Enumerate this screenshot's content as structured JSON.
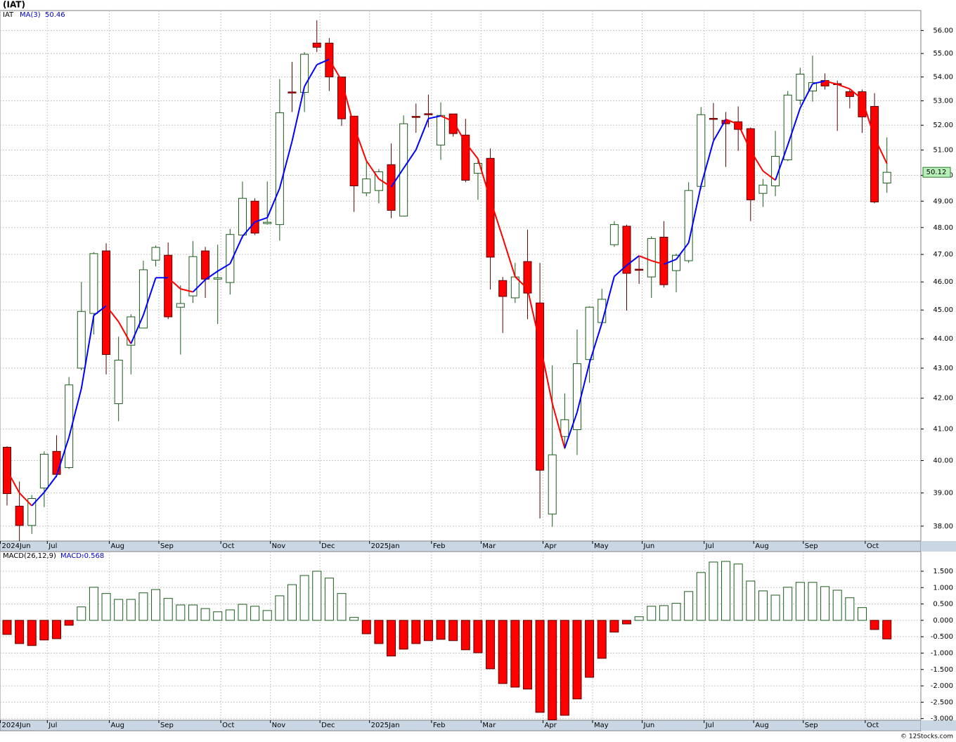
{
  "chart_data": [
    {
      "type": "candlestick",
      "title": "(IAT)",
      "symbol": "IAT",
      "categories": [
        "2024Jun",
        null,
        null,
        null,
        "Jul",
        null,
        null,
        null,
        null,
        "Aug",
        null,
        null,
        null,
        "Sep",
        null,
        null,
        null,
        null,
        "Oct",
        null,
        null,
        null,
        "Nov",
        null,
        null,
        null,
        "Dec",
        null,
        null,
        null,
        "2025Jan",
        null,
        null,
        null,
        null,
        "Feb",
        null,
        null,
        null,
        "Mar",
        null,
        null,
        null,
        null,
        "Apr",
        null,
        null,
        null,
        "May",
        null,
        null,
        null,
        "Jun",
        null,
        null,
        null,
        null,
        "Jul",
        null,
        null,
        null,
        "Aug",
        null,
        null,
        null,
        "Sep",
        null,
        null,
        null,
        null,
        "Oct",
        null
      ],
      "open": [
        40.42,
        38.6,
        38.02,
        39.15,
        40.29,
        39.78,
        43.0,
        44.88,
        47.13,
        41.82,
        43.78,
        44.37,
        46.79,
        46.97,
        45.1,
        45.5,
        47.13,
        46.1,
        45.98,
        47.72,
        49.0,
        48.15,
        48.11,
        53.37,
        53.35,
        55.45,
        55.45,
        54.0,
        52.37,
        49.32,
        49.41,
        50.42,
        48.43,
        52.36,
        52.47,
        51.2,
        52.46,
        51.6,
        50.08,
        50.67,
        46.05,
        45.43,
        46.74,
        45.25,
        38.36,
        40.76,
        40.98,
        43.29,
        44.56,
        47.36,
        48.05,
        46.46,
        46.18,
        47.64,
        46.41,
        46.77,
        49.57,
        52.28,
        52.2,
        52.14,
        51.86,
        49.3,
        49.59,
        50.61,
        53.03,
        53.41,
        53.85,
        53.72,
        53.38,
        53.38,
        52.77,
        49.7
      ],
      "high": [
        40.45,
        39.35,
        38.94,
        40.29,
        40.8,
        42.7,
        46.0,
        47.08,
        47.41,
        44.07,
        44.85,
        46.77,
        47.33,
        47.44,
        45.88,
        47.49,
        47.28,
        47.36,
        47.95,
        49.76,
        49.11,
        49.76,
        53.91,
        54.64,
        55.06,
        56.45,
        55.67,
        54.0,
        52.37,
        50.56,
        50.25,
        51.26,
        52.4,
        52.89,
        53.26,
        52.94,
        52.46,
        52.26,
        50.69,
        51.06,
        46.18,
        46.69,
        47.92,
        46.69,
        43.1,
        42.16,
        44.32,
        45.13,
        45.75,
        48.24,
        48.11,
        46.95,
        47.67,
        48.24,
        47.03,
        49.73,
        52.74,
        52.91,
        52.54,
        52.77,
        51.91,
        49.86,
        51.77,
        53.41,
        54.39,
        54.91,
        54.15,
        53.85,
        53.47,
        53.47,
        53.32,
        51.51
      ],
      "low": [
        38.62,
        37.56,
        37.77,
        38.57,
        39.48,
        39.74,
        42.93,
        44.15,
        42.79,
        41.25,
        42.79,
        44.37,
        46.56,
        44.68,
        43.46,
        45.25,
        45.43,
        44.51,
        45.55,
        47.59,
        47.72,
        48.11,
        47.51,
        52.54,
        52.54,
        55.06,
        53.41,
        51.97,
        48.59,
        49.19,
        48.92,
        48.35,
        48.43,
        51.69,
        51.91,
        50.61,
        51.54,
        49.73,
        49.05,
        45.73,
        44.2,
        45.25,
        44.68,
        38.23,
        37.98,
        40.36,
        40.18,
        42.51,
        44.56,
        47.28,
        44.98,
        45.93,
        45.43,
        45.8,
        45.63,
        46.69,
        49.46,
        51.4,
        50.33,
        50.97,
        48.24,
        48.78,
        49.19,
        50.56,
        52.83,
        52.97,
        53.47,
        51.77,
        52.69,
        51.69,
        48.92,
        49.32
      ],
      "close": [
        38.98,
        38.02,
        38.83,
        40.2,
        39.57,
        42.44,
        44.95,
        47.03,
        43.46,
        43.27,
        44.76,
        46.44,
        47.26,
        44.76,
        45.23,
        46.92,
        46.1,
        46.15,
        47.74,
        49.11,
        47.79,
        48.2,
        52.51,
        53.33,
        54.97,
        55.27,
        54.0,
        52.26,
        49.59,
        49.86,
        50.14,
        48.65,
        52.06,
        52.32,
        52.43,
        52.4,
        51.66,
        49.81,
        50.47,
        46.9,
        45.48,
        46.18,
        45.6,
        39.7,
        40.18,
        41.3,
        43.15,
        45.1,
        45.38,
        48.11,
        46.31,
        46.42,
        47.59,
        45.9,
        46.97,
        49.41,
        52.43,
        52.24,
        52.06,
        51.83,
        49.05,
        49.62,
        50.75,
        53.24,
        54.12,
        53.76,
        53.62,
        53.69,
        53.18,
        52.34,
        48.97,
        50.12
      ],
      "up_color": "#1a5c1a",
      "down_color": "#ff0000",
      "ma": {
        "name": "MA(3)",
        "up_color": "#0000ff",
        "down_color": "#ff0000",
        "values": [
          39.7,
          39.0,
          38.61,
          39.02,
          39.53,
          40.74,
          42.32,
          44.81,
          45.15,
          44.59,
          43.83,
          44.82,
          46.15,
          46.15,
          45.75,
          45.64,
          46.08,
          46.39,
          46.66,
          47.67,
          48.21,
          48.37,
          49.5,
          51.35,
          53.6,
          54.52,
          54.75,
          53.84,
          51.95,
          50.57,
          49.86,
          49.55,
          50.28,
          51.01,
          52.27,
          52.38,
          52.16,
          51.29,
          50.65,
          49.06,
          47.62,
          46.19,
          45.75,
          43.83,
          41.83,
          40.39,
          41.54,
          43.18,
          44.54,
          46.2,
          46.6,
          46.95,
          46.77,
          46.64,
          46.82,
          47.43,
          49.6,
          51.36,
          52.24,
          52.04,
          50.98,
          50.17,
          49.81,
          51.2,
          52.7,
          53.71,
          53.83,
          53.69,
          53.5,
          53.07,
          51.5,
          50.46
        ]
      },
      "ylim": [
        37.56,
        56.88
      ],
      "log_scale": true,
      "grid": true,
      "yticks": [
        {
          "value": 38,
          "label": "38.00"
        },
        {
          "value": 39,
          "label": "39.00"
        },
        {
          "value": 40,
          "label": "40.00"
        },
        {
          "value": 41,
          "label": "41.00"
        },
        {
          "value": 42,
          "label": "42.00"
        },
        {
          "value": 43,
          "label": "43.00"
        },
        {
          "value": 44,
          "label": "44.00"
        },
        {
          "value": 45,
          "label": "45.00"
        },
        {
          "value": 46,
          "label": "46.00"
        },
        {
          "value": 47,
          "label": "47.00"
        },
        {
          "value": 48,
          "label": "48.00"
        },
        {
          "value": 49,
          "label": "49.00"
        },
        {
          "value": 50,
          "label": "50.00"
        },
        {
          "value": 51,
          "label": "51.00"
        },
        {
          "value": 52,
          "label": "52.00"
        },
        {
          "value": 53,
          "label": "53.00"
        },
        {
          "value": 54,
          "label": "54.00"
        },
        {
          "value": 55,
          "label": "55.00"
        },
        {
          "value": 56,
          "label": "56.00"
        }
      ]
    },
    {
      "type": "histogram",
      "title": "MACD(26,12,9)",
      "name": "MACD:",
      "values": [
        -0.43,
        -0.71,
        -0.77,
        -0.6,
        -0.56,
        -0.15,
        0.41,
        1.01,
        0.82,
        0.64,
        0.64,
        0.84,
        0.94,
        0.67,
        0.47,
        0.47,
        0.36,
        0.26,
        0.32,
        0.49,
        0.43,
        0.3,
        0.75,
        1.09,
        1.37,
        1.5,
        1.29,
        0.82,
        0.09,
        -0.41,
        -0.71,
        -1.09,
        -0.88,
        -0.71,
        -0.62,
        -0.58,
        -0.62,
        -0.9,
        -0.99,
        -1.48,
        -1.93,
        -2.04,
        -2.1,
        -2.81,
        -3.04,
        -2.9,
        -2.4,
        -1.74,
        -1.16,
        -0.36,
        -0.11,
        0.11,
        0.43,
        0.45,
        0.52,
        0.88,
        1.46,
        1.78,
        1.8,
        1.72,
        1.2,
        0.9,
        0.77,
        1.01,
        1.16,
        1.16,
        1.03,
        0.92,
        0.69,
        0.39,
        -0.28,
        -0.568
      ],
      "up_color": "#1a5c1a",
      "down_color": "#ff0000",
      "ylim": [
        -3.05,
        2.1
      ],
      "grid": true,
      "yticks": [
        {
          "value": 1.5,
          "label": "1.500"
        },
        {
          "value": 1,
          "label": "1.000"
        },
        {
          "value": 0.5,
          "label": "0.500"
        },
        {
          "value": 0,
          "label": "0.000"
        },
        {
          "value": -0.5,
          "label": "-0.500"
        },
        {
          "value": -1,
          "label": "-1.000"
        },
        {
          "value": -1.5,
          "label": "-1.500"
        },
        {
          "value": -2,
          "label": "-2.000"
        },
        {
          "value": -2.5,
          "label": "-2.500"
        },
        {
          "value": -3,
          "label": "-3.000"
        }
      ]
    }
  ],
  "footer": "© 12Stocks.com"
}
